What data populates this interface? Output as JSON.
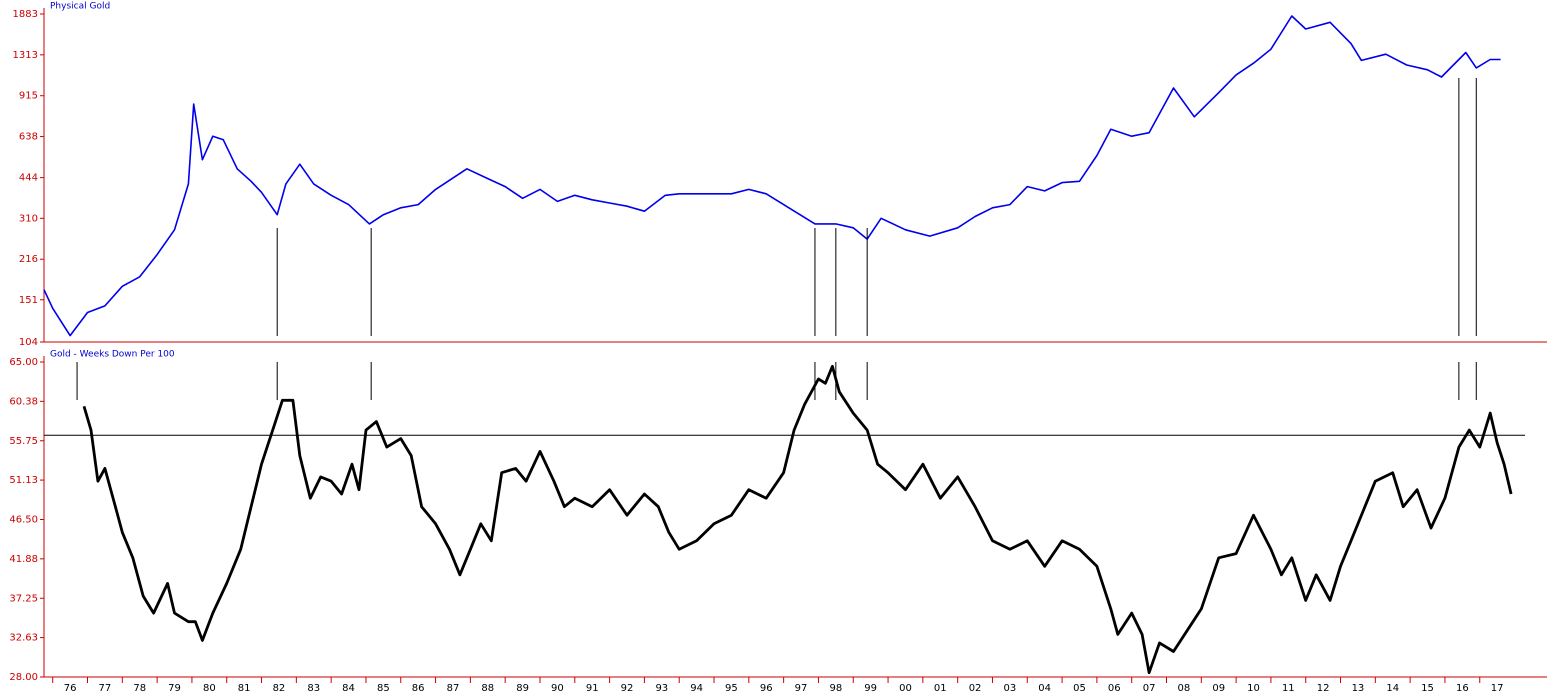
{
  "chart_data": [
    {
      "type": "line",
      "title": "Physical Gold",
      "log_y": true,
      "xlim": [
        1975.75,
        2018.3
      ],
      "ylim": [
        104,
        1883
      ],
      "yticks": [
        104,
        151,
        216,
        310,
        444,
        638,
        915,
        1313,
        1883
      ],
      "markers": [
        1982.45,
        1985.15,
        1997.9,
        1998.5,
        1999.4,
        2016.4,
        2016.9
      ],
      "x": [
        1975.75,
        1976.0,
        1976.5,
        1977.0,
        1977.5,
        1978.0,
        1978.5,
        1979.0,
        1979.5,
        1979.9,
        1980.05,
        1980.3,
        1980.6,
        1980.9,
        1981.3,
        1981.7,
        1982.0,
        1982.45,
        1982.7,
        1983.1,
        1983.5,
        1984.0,
        1984.5,
        1985.1,
        1985.5,
        1986.0,
        1986.5,
        1987.0,
        1987.9,
        1988.5,
        1989.0,
        1989.5,
        1990.0,
        1990.5,
        1991.0,
        1991.5,
        1992.0,
        1992.5,
        1993.0,
        1993.6,
        1994.0,
        1994.5,
        1995.5,
        1996.0,
        1996.5,
        1997.0,
        1997.9,
        1998.5,
        1999.0,
        1999.4,
        1999.8,
        2000.5,
        2001.2,
        2002.0,
        2002.5,
        2003.0,
        2003.5,
        2004.0,
        2004.5,
        2005.0,
        2005.5,
        2006.0,
        2006.4,
        2007.0,
        2007.5,
        2008.2,
        2008.8,
        2009.5,
        2010.0,
        2010.5,
        2011.0,
        2011.6,
        2012.0,
        2012.7,
        2013.3,
        2013.6,
        2014.3,
        2014.9,
        2015.5,
        2015.9,
        2016.6,
        2016.9,
        2017.3,
        2017.6
      ],
      "series": [
        {
          "name": "Physical Gold",
          "color": "#0000ee",
          "values": [
            165,
            140,
            110,
            135,
            143,
            170,
            185,
            225,
            280,
            420,
            850,
            520,
            640,
            620,
            480,
            430,
            390,
            320,
            420,
            500,
            420,
            380,
            350,
            295,
            320,
            340,
            350,
            400,
            480,
            440,
            410,
            370,
            400,
            360,
            380,
            365,
            355,
            345,
            330,
            380,
            385,
            385,
            385,
            400,
            385,
            350,
            295,
            295,
            285,
            258,
            310,
            280,
            265,
            285,
            315,
            340,
            350,
            410,
            395,
            425,
            430,
            540,
            680,
            640,
            660,
            980,
            760,
            940,
            1100,
            1220,
            1380,
            1850,
            1650,
            1750,
            1450,
            1250,
            1320,
            1200,
            1150,
            1080,
            1340,
            1170,
            1260,
            1260
          ]
        }
      ]
    },
    {
      "type": "line",
      "title": "Gold - Weeks Down Per 100",
      "xlim": [
        1975.75,
        2018.3
      ],
      "ylim": [
        28,
        65
      ],
      "yticks": [
        {
          "value": 28,
          "label": "28.00"
        },
        {
          "value": 32.63,
          "label": "32.63"
        },
        {
          "value": 37.25,
          "label": "37.25"
        },
        {
          "value": 41.88,
          "label": "41.88"
        },
        {
          "value": 46.5,
          "label": "46.50"
        },
        {
          "value": 51.13,
          "label": "51.13"
        },
        {
          "value": 55.75,
          "label": "55.75"
        },
        {
          "value": 60.38,
          "label": "60.38"
        },
        {
          "value": 65,
          "label": "65.00"
        }
      ],
      "xticks": [
        {
          "value": 1976,
          "label": "76"
        },
        {
          "value": 1977,
          "label": "77"
        },
        {
          "value": 1978,
          "label": "78"
        },
        {
          "value": 1979,
          "label": "79"
        },
        {
          "value": 1980,
          "label": "80"
        },
        {
          "value": 1981,
          "label": "81"
        },
        {
          "value": 1982,
          "label": "82"
        },
        {
          "value": 1983,
          "label": "83"
        },
        {
          "value": 1984,
          "label": "84"
        },
        {
          "value": 1985,
          "label": "85"
        },
        {
          "value": 1986,
          "label": "86"
        },
        {
          "value": 1987,
          "label": "87"
        },
        {
          "value": 1988,
          "label": "88"
        },
        {
          "value": 1989,
          "label": "89"
        },
        {
          "value": 1990,
          "label": "90"
        },
        {
          "value": 1991,
          "label": "91"
        },
        {
          "value": 1992,
          "label": "92"
        },
        {
          "value": 1993,
          "label": "93"
        },
        {
          "value": 1994,
          "label": "94"
        },
        {
          "value": 1995,
          "label": "95"
        },
        {
          "value": 1996,
          "label": "96"
        },
        {
          "value": 1997,
          "label": "97"
        },
        {
          "value": 1998,
          "label": "98"
        },
        {
          "value": 1999,
          "label": "99"
        },
        {
          "value": 2000,
          "label": "00"
        },
        {
          "value": 2001,
          "label": "01"
        },
        {
          "value": 2002,
          "label": "02"
        },
        {
          "value": 2003,
          "label": "03"
        },
        {
          "value": 2004,
          "label": "04"
        },
        {
          "value": 2005,
          "label": "05"
        },
        {
          "value": 2006,
          "label": "06"
        },
        {
          "value": 2007,
          "label": "07"
        },
        {
          "value": 2008,
          "label": "08"
        },
        {
          "value": 2009,
          "label": "09"
        },
        {
          "value": 2010,
          "label": "10"
        },
        {
          "value": 2011,
          "label": "11"
        },
        {
          "value": 2012,
          "label": "12"
        },
        {
          "value": 2013,
          "label": "13"
        },
        {
          "value": 2014,
          "label": "14"
        },
        {
          "value": 2015,
          "label": "15"
        },
        {
          "value": 2016,
          "label": "16"
        },
        {
          "value": 2017,
          "label": "17"
        }
      ],
      "hline": 56.4,
      "markers": [
        1976.7,
        1982.45,
        1985.15,
        1997.9,
        1998.5,
        1999.4,
        2016.4,
        2016.9
      ],
      "x": [
        1976.9,
        1977.1,
        1977.3,
        1977.5,
        1977.8,
        1978.0,
        1978.3,
        1978.6,
        1978.9,
        1979.3,
        1979.5,
        1979.9,
        1980.1,
        1980.3,
        1980.6,
        1981.0,
        1981.4,
        1981.7,
        1982.0,
        1982.4,
        1982.6,
        1982.9,
        1983.1,
        1983.4,
        1983.7,
        1984.0,
        1984.3,
        1984.6,
        1984.8,
        1985.0,
        1985.3,
        1985.6,
        1986.0,
        1986.3,
        1986.6,
        1987.0,
        1987.4,
        1987.7,
        1988.0,
        1988.3,
        1988.6,
        1988.9,
        1989.3,
        1989.6,
        1990.0,
        1990.4,
        1990.7,
        1991.0,
        1991.5,
        1992.0,
        1992.5,
        1993.0,
        1993.4,
        1993.7,
        1994.0,
        1994.5,
        1995.0,
        1995.5,
        1996.0,
        1996.5,
        1997.0,
        1997.3,
        1997.6,
        1998.0,
        1998.2,
        1998.4,
        1998.6,
        1999.0,
        1999.4,
        1999.7,
        2000.0,
        2000.5,
        2001.0,
        2001.5,
        2002.0,
        2002.5,
        2003.0,
        2003.5,
        2004.0,
        2004.5,
        2005.0,
        2005.5,
        2006.0,
        2006.4,
        2006.6,
        2007.0,
        2007.3,
        2007.5,
        2007.8,
        2008.2,
        2008.6,
        2009.0,
        2009.5,
        2010.0,
        2010.5,
        2011.0,
        2011.3,
        2011.6,
        2012.0,
        2012.3,
        2012.7,
        2013.0,
        2013.3,
        2013.7,
        2014.0,
        2014.5,
        2014.8,
        2015.2,
        2015.6,
        2016.0,
        2016.4,
        2016.7,
        2017.0,
        2017.3,
        2017.5,
        2017.7,
        2017.9
      ],
      "series": [
        {
          "name": "Gold - Weeks Down Per 100",
          "color": "#000000",
          "values": [
            59.8,
            57,
            51,
            52.5,
            48,
            45,
            42,
            37.5,
            35.5,
            39,
            35.5,
            34.5,
            34.5,
            32.3,
            35.5,
            39,
            43,
            48,
            53,
            58,
            60.5,
            60.5,
            54,
            49,
            51.5,
            51,
            49.5,
            53,
            50,
            57,
            58,
            55,
            56,
            54,
            48,
            46,
            43,
            40,
            43,
            46,
            44,
            52,
            52.5,
            51,
            54.5,
            51,
            48,
            49,
            48,
            50,
            47,
            49.5,
            48,
            45,
            43,
            44,
            46,
            47,
            50,
            49,
            52,
            57,
            60,
            63,
            62.5,
            64.5,
            61.5,
            59,
            57,
            53,
            52,
            50,
            53,
            49,
            51.5,
            48,
            44,
            43,
            44,
            41,
            44,
            43,
            41,
            36,
            33,
            35.5,
            33,
            28.5,
            32,
            31,
            33.5,
            36,
            42,
            42.5,
            47,
            43,
            40,
            42,
            37,
            40,
            37,
            41,
            44,
            48,
            51,
            52,
            48,
            50,
            45.5,
            49,
            55,
            57,
            55,
            59,
            55.5,
            53,
            49.5
          ]
        }
      ]
    }
  ]
}
